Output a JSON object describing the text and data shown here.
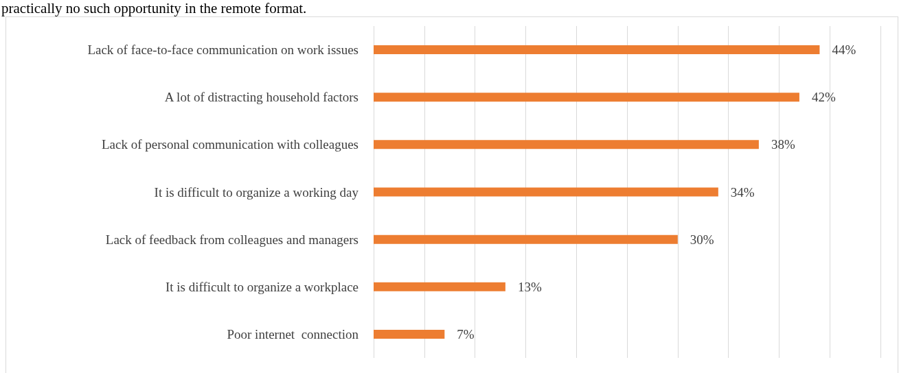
{
  "chart_data": {
    "type": "bar",
    "orientation": "horizontal",
    "annotations": [
      "practically no such opportunity in the remote format."
    ],
    "categories": [
      "Lack of face-to-face communication on work issues",
      "A lot of distracting household factors",
      "Lack of personal communication with colleagues",
      "It is difficult to organize a working day",
      "Lack of feedback from colleagues and managers",
      "It is difficult to organize a workplace",
      "Poor internet  connection"
    ],
    "values": [
      44,
      42,
      38,
      34,
      30,
      13,
      7
    ],
    "value_labels": [
      "44%",
      "42%",
      "38%",
      "34%",
      "30%",
      "13%",
      "7%"
    ],
    "color": "#ed7d31",
    "xlim": [
      0,
      50
    ],
    "xticks": [
      {
        "value": 0,
        "label": null
      },
      {
        "value": 5,
        "label": null
      },
      {
        "value": 10,
        "label": null
      },
      {
        "value": 15,
        "label": null
      },
      {
        "value": 20,
        "label": null
      },
      {
        "value": 25,
        "label": null
      },
      {
        "value": 30,
        "label": null
      },
      {
        "value": 35,
        "label": null
      },
      {
        "value": 40,
        "label": null
      },
      {
        "value": 45,
        "label": null
      },
      {
        "value": 50,
        "label": null
      }
    ],
    "grid": "x",
    "tick_labels": "y"
  }
}
